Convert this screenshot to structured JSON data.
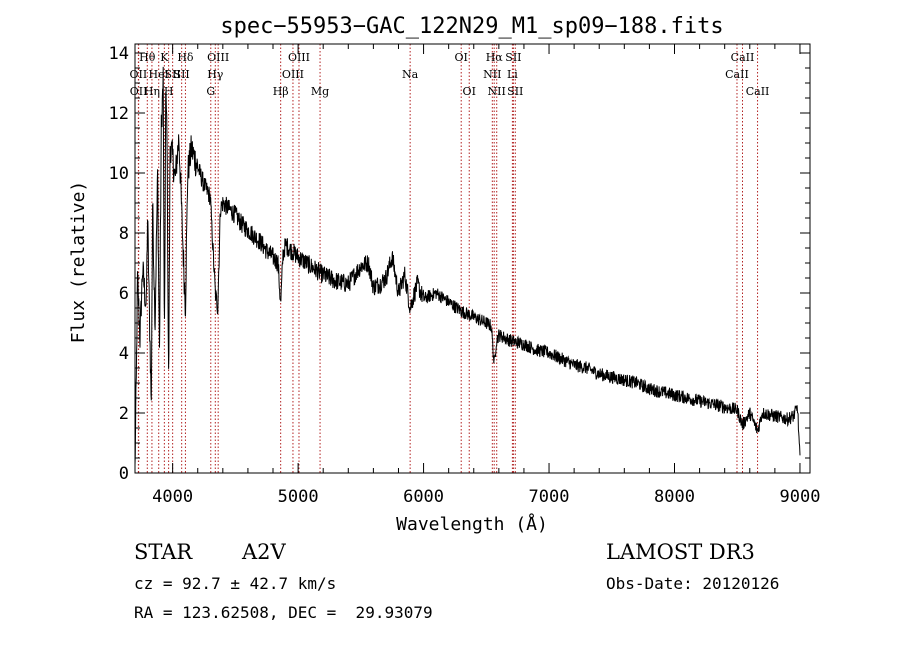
{
  "colors": {
    "axis": "#000000",
    "spectrum": "#000000",
    "lines": "#b22222",
    "background": "#ffffff"
  },
  "chart_data": {
    "type": "line",
    "title": "spec−55953−GAC_122N29_M1_sp09−188.fits",
    "xlabel": "Wavelength (Å)",
    "ylabel": "Flux (relative)",
    "xlim": [
      3700,
      9080
    ],
    "ylim": [
      0,
      14.3
    ],
    "xticks": [
      4000,
      5000,
      6000,
      7000,
      8000,
      9000
    ],
    "yticks": [
      0,
      2,
      4,
      6,
      8,
      10,
      12,
      14
    ],
    "series": [
      {
        "name": "spectrum",
        "x": [
          3700,
          3710,
          3720,
          3740,
          3760,
          3790,
          3800,
          3830,
          3840,
          3860,
          3880,
          3895,
          3910,
          3925,
          3934,
          3945,
          3955,
          3968,
          3980,
          4000,
          4020,
          4050,
          4080,
          4102,
          4120,
          4150,
          4200,
          4250,
          4300,
          4340,
          4360,
          4380,
          4400,
          4450,
          4500,
          4550,
          4600,
          4650,
          4700,
          4750,
          4800,
          4840,
          4861,
          4880,
          4900,
          4950,
          5000,
          5100,
          5200,
          5300,
          5400,
          5500,
          5560,
          5600,
          5650,
          5700,
          5750,
          5800,
          5850,
          5893,
          5950,
          6000,
          6100,
          6200,
          6300,
          6400,
          6500,
          6540,
          6563,
          6580,
          6600,
          6700,
          6800,
          6900,
          7000,
          7100,
          7200,
          7300,
          7400,
          7500,
          7600,
          7700,
          7800,
          7900,
          8000,
          8100,
          8200,
          8300,
          8400,
          8500,
          8542,
          8600,
          8662,
          8700,
          8800,
          8900,
          8950,
          8980,
          9000
        ],
        "y": [
          0.1,
          3.0,
          6.5,
          4.5,
          6.8,
          5.5,
          8.5,
          2.2,
          9.0,
          5.0,
          10.0,
          4.0,
          11.5,
          13.2,
          3.8,
          12.5,
          11.5,
          2.8,
          11.0,
          10.5,
          9.8,
          11.2,
          7.8,
          5.5,
          10.0,
          10.8,
          10.2,
          9.6,
          9.2,
          6.0,
          5.5,
          8.8,
          9.0,
          8.8,
          8.6,
          8.3,
          8.1,
          7.9,
          7.7,
          7.4,
          7.2,
          7.0,
          5.6,
          7.3,
          7.6,
          7.4,
          7.2,
          6.9,
          6.6,
          6.4,
          6.3,
          6.9,
          7.0,
          6.2,
          6.3,
          6.5,
          7.2,
          6.0,
          6.6,
          5.5,
          6.3,
          5.8,
          6.0,
          5.7,
          5.4,
          5.2,
          5.0,
          4.9,
          3.6,
          4.4,
          4.6,
          4.4,
          4.3,
          4.1,
          4.0,
          3.8,
          3.6,
          3.5,
          3.3,
          3.2,
          3.1,
          3.0,
          2.8,
          2.7,
          2.6,
          2.5,
          2.4,
          2.3,
          2.2,
          2.1,
          1.6,
          2.0,
          1.4,
          2.0,
          1.9,
          1.8,
          1.9,
          2.2,
          0.5
        ]
      }
    ],
    "lines": [
      {
        "label": "OII",
        "wave": 3727,
        "row": 1
      },
      {
        "label": "OII",
        "wave": 3729,
        "row": 2
      },
      {
        "label": "Hθ",
        "wave": 3798,
        "row": 0
      },
      {
        "label": "Hη",
        "wave": 3835,
        "row": 2
      },
      {
        "label": "HeI",
        "wave": 3889,
        "row": 1
      },
      {
        "label": "K",
        "wave": 3934,
        "row": 0
      },
      {
        "label": "SII",
        "wave": 4000,
        "row": 1
      },
      {
        "label": "H",
        "wave": 3968,
        "row": 2
      },
      {
        "label": "Hδ",
        "wave": 4102,
        "row": 0
      },
      {
        "label": "SII",
        "wave": 4072,
        "row": 1
      },
      {
        "label": "OIII",
        "wave": 4363,
        "row": 0
      },
      {
        "label": "Hγ",
        "wave": 4340,
        "row": 1
      },
      {
        "label": "G",
        "wave": 4304,
        "row": 2
      },
      {
        "label": "Hβ",
        "wave": 4861,
        "row": 2
      },
      {
        "label": "OIII",
        "wave": 4959,
        "row": 1
      },
      {
        "label": "OIII",
        "wave": 5007,
        "row": 0
      },
      {
        "label": "Mg",
        "wave": 5175,
        "row": 2
      },
      {
        "label": "Na",
        "wave": 5893,
        "row": 1
      },
      {
        "label": "OI",
        "wave": 6300,
        "row": 0
      },
      {
        "label": "OI",
        "wave": 6364,
        "row": 2
      },
      {
        "label": "NII",
        "wave": 6548,
        "row": 1
      },
      {
        "label": "Hα",
        "wave": 6563,
        "row": 0
      },
      {
        "label": "NII",
        "wave": 6583,
        "row": 2
      },
      {
        "label": "Li",
        "wave": 6708,
        "row": 1
      },
      {
        "label": "SII",
        "wave": 6716,
        "row": 0
      },
      {
        "label": "SII",
        "wave": 6731,
        "row": 2
      },
      {
        "label": "CaII",
        "wave": 8498,
        "row": 1
      },
      {
        "label": "CaII",
        "wave": 8542,
        "row": 0
      },
      {
        "label": "CaII",
        "wave": 8662,
        "row": 2
      }
    ]
  },
  "info": {
    "object_class": "STAR",
    "subclass": "A2V",
    "survey": "LAMOST DR3",
    "cz": "cz = 92.7 ± 42.7 km/s",
    "obs_date": "Obs-Date: 20120126",
    "coords": "RA = 123.62508, DEC =  29.93079"
  }
}
